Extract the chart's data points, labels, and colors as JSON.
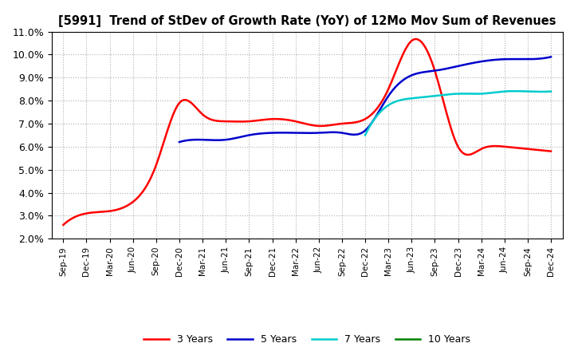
{
  "title": "[5991]  Trend of StDev of Growth Rate (YoY) of 12Mo Mov Sum of Revenues",
  "ylim": [
    0.02,
    0.11
  ],
  "yticks": [
    0.02,
    0.03,
    0.04,
    0.05,
    0.06,
    0.07,
    0.08,
    0.09,
    0.1,
    0.11
  ],
  "ytick_labels": [
    "2.0%",
    "3.0%",
    "4.0%",
    "5.0%",
    "6.0%",
    "7.0%",
    "8.0%",
    "9.0%",
    "10.0%",
    "11.0%"
  ],
  "x_labels": [
    "Sep-19",
    "Dec-19",
    "Mar-20",
    "Jun-20",
    "Sep-20",
    "Dec-20",
    "Mar-21",
    "Jun-21",
    "Sep-21",
    "Dec-21",
    "Mar-22",
    "Jun-22",
    "Sep-22",
    "Dec-22",
    "Mar-23",
    "Jun-23",
    "Sep-23",
    "Dec-23",
    "Mar-24",
    "Jun-24",
    "Sep-24",
    "Dec-24"
  ],
  "legend_labels": [
    "3 Years",
    "5 Years",
    "7 Years",
    "10 Years"
  ],
  "legend_colors": [
    "#ff0000",
    "#0000cc",
    "#00cccc",
    "#008000"
  ],
  "background_color": "#ffffff",
  "grid_color": "#aaaaaa",
  "series_3yr_x": [
    0,
    1,
    2,
    3,
    4,
    5,
    6,
    7,
    8,
    9,
    10,
    11,
    12,
    13,
    14,
    15,
    16,
    17,
    18,
    19,
    20,
    21
  ],
  "series_3yr_v": [
    0.026,
    0.031,
    0.032,
    0.036,
    0.052,
    0.079,
    0.074,
    0.071,
    0.071,
    0.072,
    0.071,
    0.069,
    0.07,
    0.072,
    0.085,
    0.106,
    0.093,
    0.06,
    0.059,
    0.06,
    0.059,
    0.058
  ],
  "series_5yr_x": [
    5,
    6,
    7,
    8,
    9,
    10,
    11,
    12,
    13,
    14,
    15,
    16,
    17,
    18,
    19,
    20,
    21
  ],
  "series_5yr_v": [
    0.062,
    0.063,
    0.063,
    0.065,
    0.066,
    0.066,
    0.066,
    0.066,
    0.067,
    0.082,
    0.091,
    0.093,
    0.095,
    0.097,
    0.098,
    0.098,
    0.099
  ],
  "series_7yr_x": [
    13,
    14,
    15,
    16,
    17,
    18,
    19,
    20,
    21
  ],
  "series_7yr_v": [
    0.065,
    0.078,
    0.081,
    0.082,
    0.083,
    0.083,
    0.084,
    0.084,
    0.084
  ],
  "series_10yr_x": [],
  "series_10yr_v": []
}
